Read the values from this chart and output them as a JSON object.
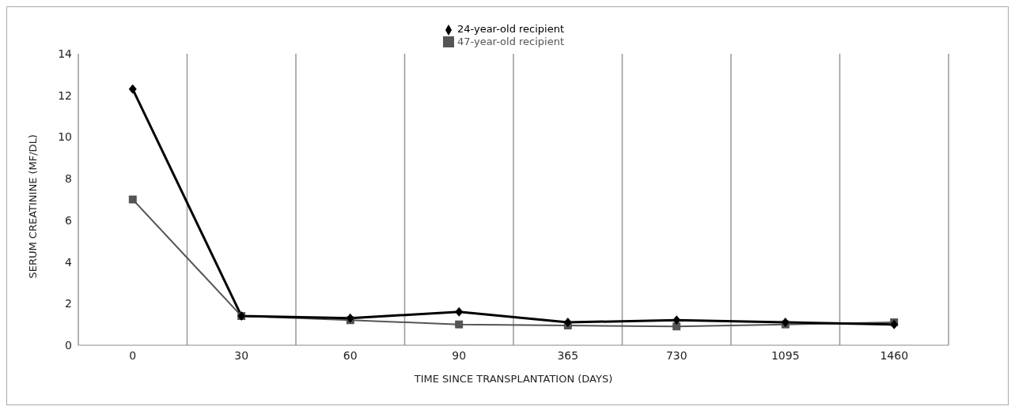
{
  "chart_data": {
    "type": "line",
    "xlabel": "TIME SINCE TRANSPLANTATION (DAYS)",
    "ylabel": "SERUM CREATININE (MF/DL)",
    "categories": [
      "0",
      "30",
      "60",
      "90",
      "365",
      "730",
      "1095",
      "1460"
    ],
    "series": [
      {
        "name": "24-year-old recipient",
        "color": "#000000",
        "marker": "diamond",
        "values": [
          12.3,
          1.4,
          1.3,
          1.6,
          1.1,
          1.2,
          1.1,
          1.0
        ]
      },
      {
        "name": "47-year-old recipient",
        "color": "#555555",
        "marker": "square",
        "values": [
          7.0,
          1.4,
          1.2,
          1.0,
          0.95,
          0.9,
          1.0,
          1.1
        ]
      }
    ],
    "ylim": [
      0,
      14
    ],
    "yticks": [
      0,
      2,
      4,
      6,
      8,
      10,
      12,
      14
    ],
    "grid": "x",
    "legend": "top",
    "line_style": "solid"
  }
}
